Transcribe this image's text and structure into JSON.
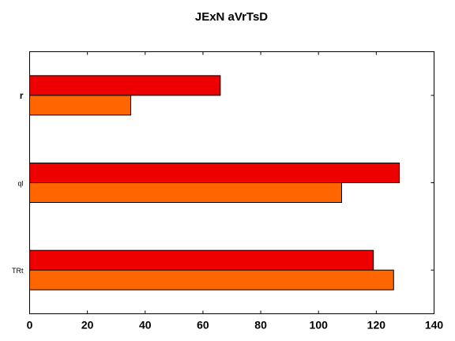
{
  "chart_data": {
    "type": "bar",
    "orientation": "horizontal",
    "title": "JExN aVrTsD",
    "xlabel": "",
    "ylabel": "",
    "categories": [
      "r",
      "ql",
      "TRt"
    ],
    "series": [
      {
        "color": "#ee0000",
        "values": [
          66,
          128,
          119
        ]
      },
      {
        "color": "#ff6600",
        "values": [
          35,
          108,
          126
        ]
      }
    ],
    "xlim": [
      0,
      140
    ],
    "xticks": [
      "0",
      "20",
      "40",
      "60",
      "80",
      "100",
      "120",
      "140"
    ],
    "grid": false,
    "legend": "none"
  }
}
